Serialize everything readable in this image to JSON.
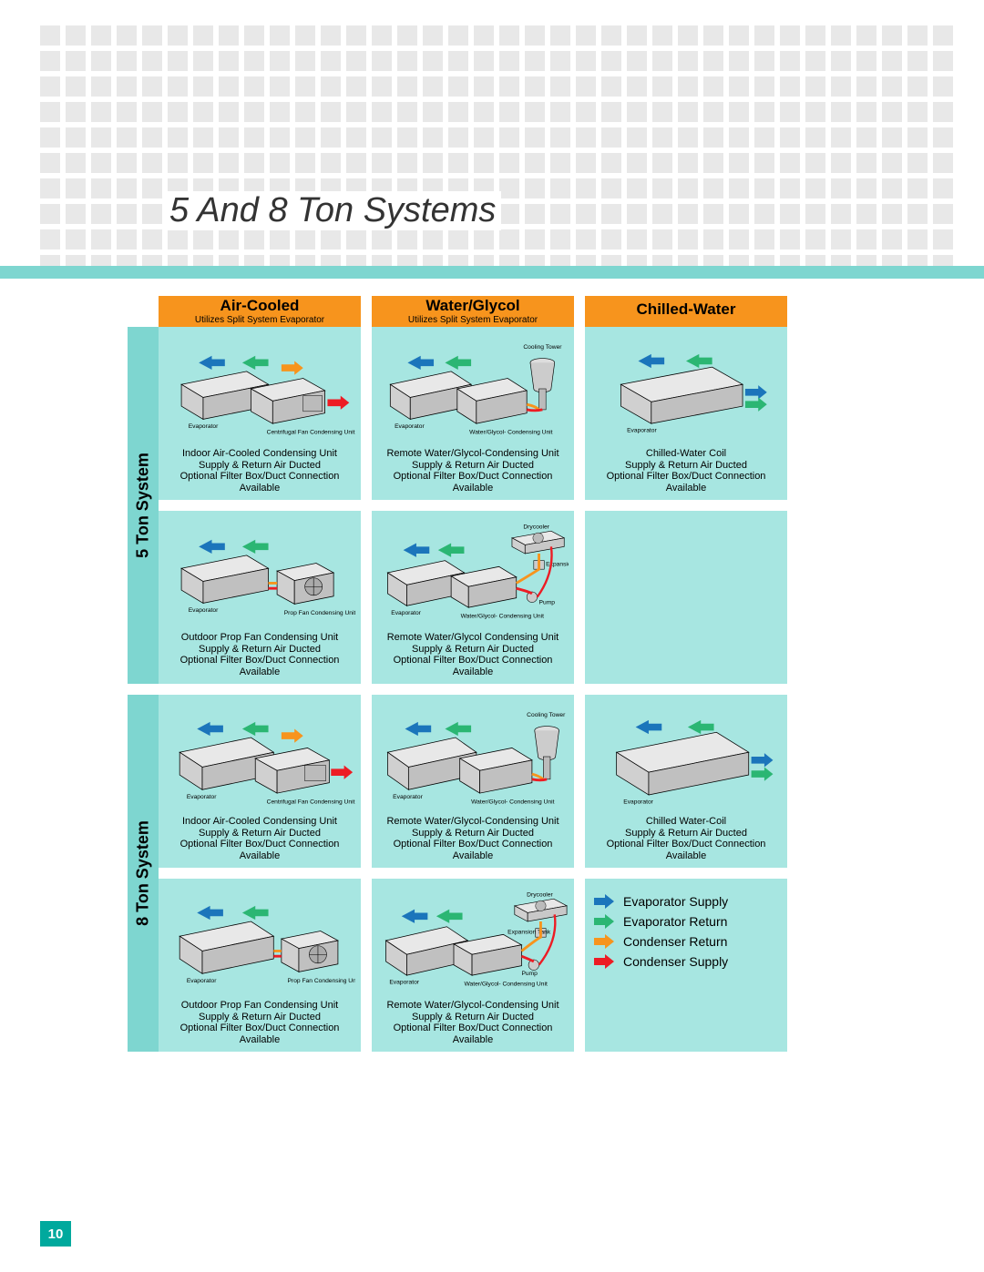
{
  "page_title": "5 And 8 Ton Systems",
  "page_number": "10",
  "colors": {
    "header_bg": "#f7941d",
    "cell_bg": "#a7e6e1",
    "rule_bg": "#7ed6d0",
    "pagenum_bg": "#00a99d",
    "dot_bg": "#e8e8e8",
    "evap_supply": "#1b75bb",
    "evap_return": "#2bb673",
    "cond_return": "#f7941d",
    "cond_supply": "#ed1c24"
  },
  "columns": [
    {
      "title": "Air-Cooled",
      "subtitle": "Utilizes Split System Evaporator"
    },
    {
      "title": "Water/Glycol",
      "subtitle": "Utilizes Split System Evaporator"
    },
    {
      "title": "Chilled-Water",
      "subtitle": ""
    }
  ],
  "rows": [
    {
      "label": "5 Ton System"
    },
    {
      "label": "8 Ton System"
    }
  ],
  "cells": {
    "r0c0a": {
      "caption_lines": [
        "Indoor Air-Cooled Condensing Unit",
        "Supply & Return Air Ducted",
        "Optional Filter Box/Duct Connection Available"
      ],
      "labels": {
        "evap": "Evaporator",
        "extra": "Centrifugal Fan\nCondensing Unit"
      }
    },
    "r0c0b": {
      "caption_lines": [
        "Outdoor Prop Fan Condensing Unit",
        "Supply & Return Air Ducted",
        "Optional Filter Box/Duct Connection Available"
      ],
      "labels": {
        "evap": "Evaporator",
        "extra": "Prop Fan\nCondensing Unit"
      }
    },
    "r0c1a": {
      "caption_lines": [
        "Remote Water/Glycol-Condensing Unit",
        "Supply & Return Air Ducted",
        "Optional Filter Box/Duct Connection Available"
      ],
      "labels": {
        "evap": "Evaporator",
        "extra": "Water/Glycol-\nCondensing Unit",
        "top": "Cooling Tower"
      }
    },
    "r0c1b": {
      "caption_lines": [
        "Remote Water/Glycol Condensing Unit",
        "Supply & Return Air Ducted",
        "Optional Filter Box/Duct Connection Available"
      ],
      "labels": {
        "evap": "Evaporator",
        "extra": "Water/Glycol-\nCondensing Unit",
        "top": "Drycooler",
        "mid": "Expansion\nTank",
        "pump": "Pump"
      }
    },
    "r0c2a": {
      "caption_lines": [
        "Chilled-Water Coil",
        "Supply & Return Air Ducted",
        "Optional Filter Box/Duct Connection Available"
      ],
      "labels": {
        "evap": "Evaporator"
      }
    },
    "r1c0a": {
      "caption_lines": [
        "Indoor Air-Cooled Condensing Unit",
        "Supply & Return Air Ducted",
        "Optional Filter Box/Duct Connection Available"
      ],
      "labels": {
        "evap": "Evaporator",
        "extra": "Centrifugal Fan\nCondensing Unit"
      }
    },
    "r1c0b": {
      "caption_lines": [
        "Outdoor Prop Fan Condensing Unit",
        "Supply & Return Air Ducted",
        "Optional Filter Box/Duct Connection Available"
      ],
      "labels": {
        "evap": "Evaporator",
        "extra": "Prop Fan\nCondensing Unit"
      }
    },
    "r1c1a": {
      "caption_lines": [
        "Remote Water/Glycol-Condensing Unit",
        "Supply & Return Air Ducted",
        "Optional Filter Box/Duct Connection Available"
      ],
      "labels": {
        "evap": "Evaporator",
        "extra": "Water/Glycol-\nCondensing Unit",
        "top": "Cooling Tower"
      }
    },
    "r1c1b": {
      "caption_lines": [
        "Remote Water/Glycol-Condensing Unit",
        "Supply & Return Air Ducted",
        "Optional Filter Box/Duct Connection Available"
      ],
      "labels": {
        "evap": "Evaporator",
        "extra": "Water/Glycol-\nCondensing Unit",
        "top": "Drycooler",
        "mid": "Expansion Tank",
        "pump": "Pump"
      }
    },
    "r1c2a": {
      "caption_lines": [
        "Chilled Water-Coil",
        "Supply & Return Air Ducted",
        "Optional Filter Box/Duct Connection Available"
      ],
      "labels": {
        "evap": "Evaporator"
      }
    }
  },
  "legend": [
    {
      "label": "Evaporator Supply",
      "color": "#1b75bb"
    },
    {
      "label": "Evaporator Return",
      "color": "#2bb673"
    },
    {
      "label": "Condenser Return",
      "color": "#f7941d"
    },
    {
      "label": "Condenser Supply",
      "color": "#ed1c24"
    }
  ]
}
